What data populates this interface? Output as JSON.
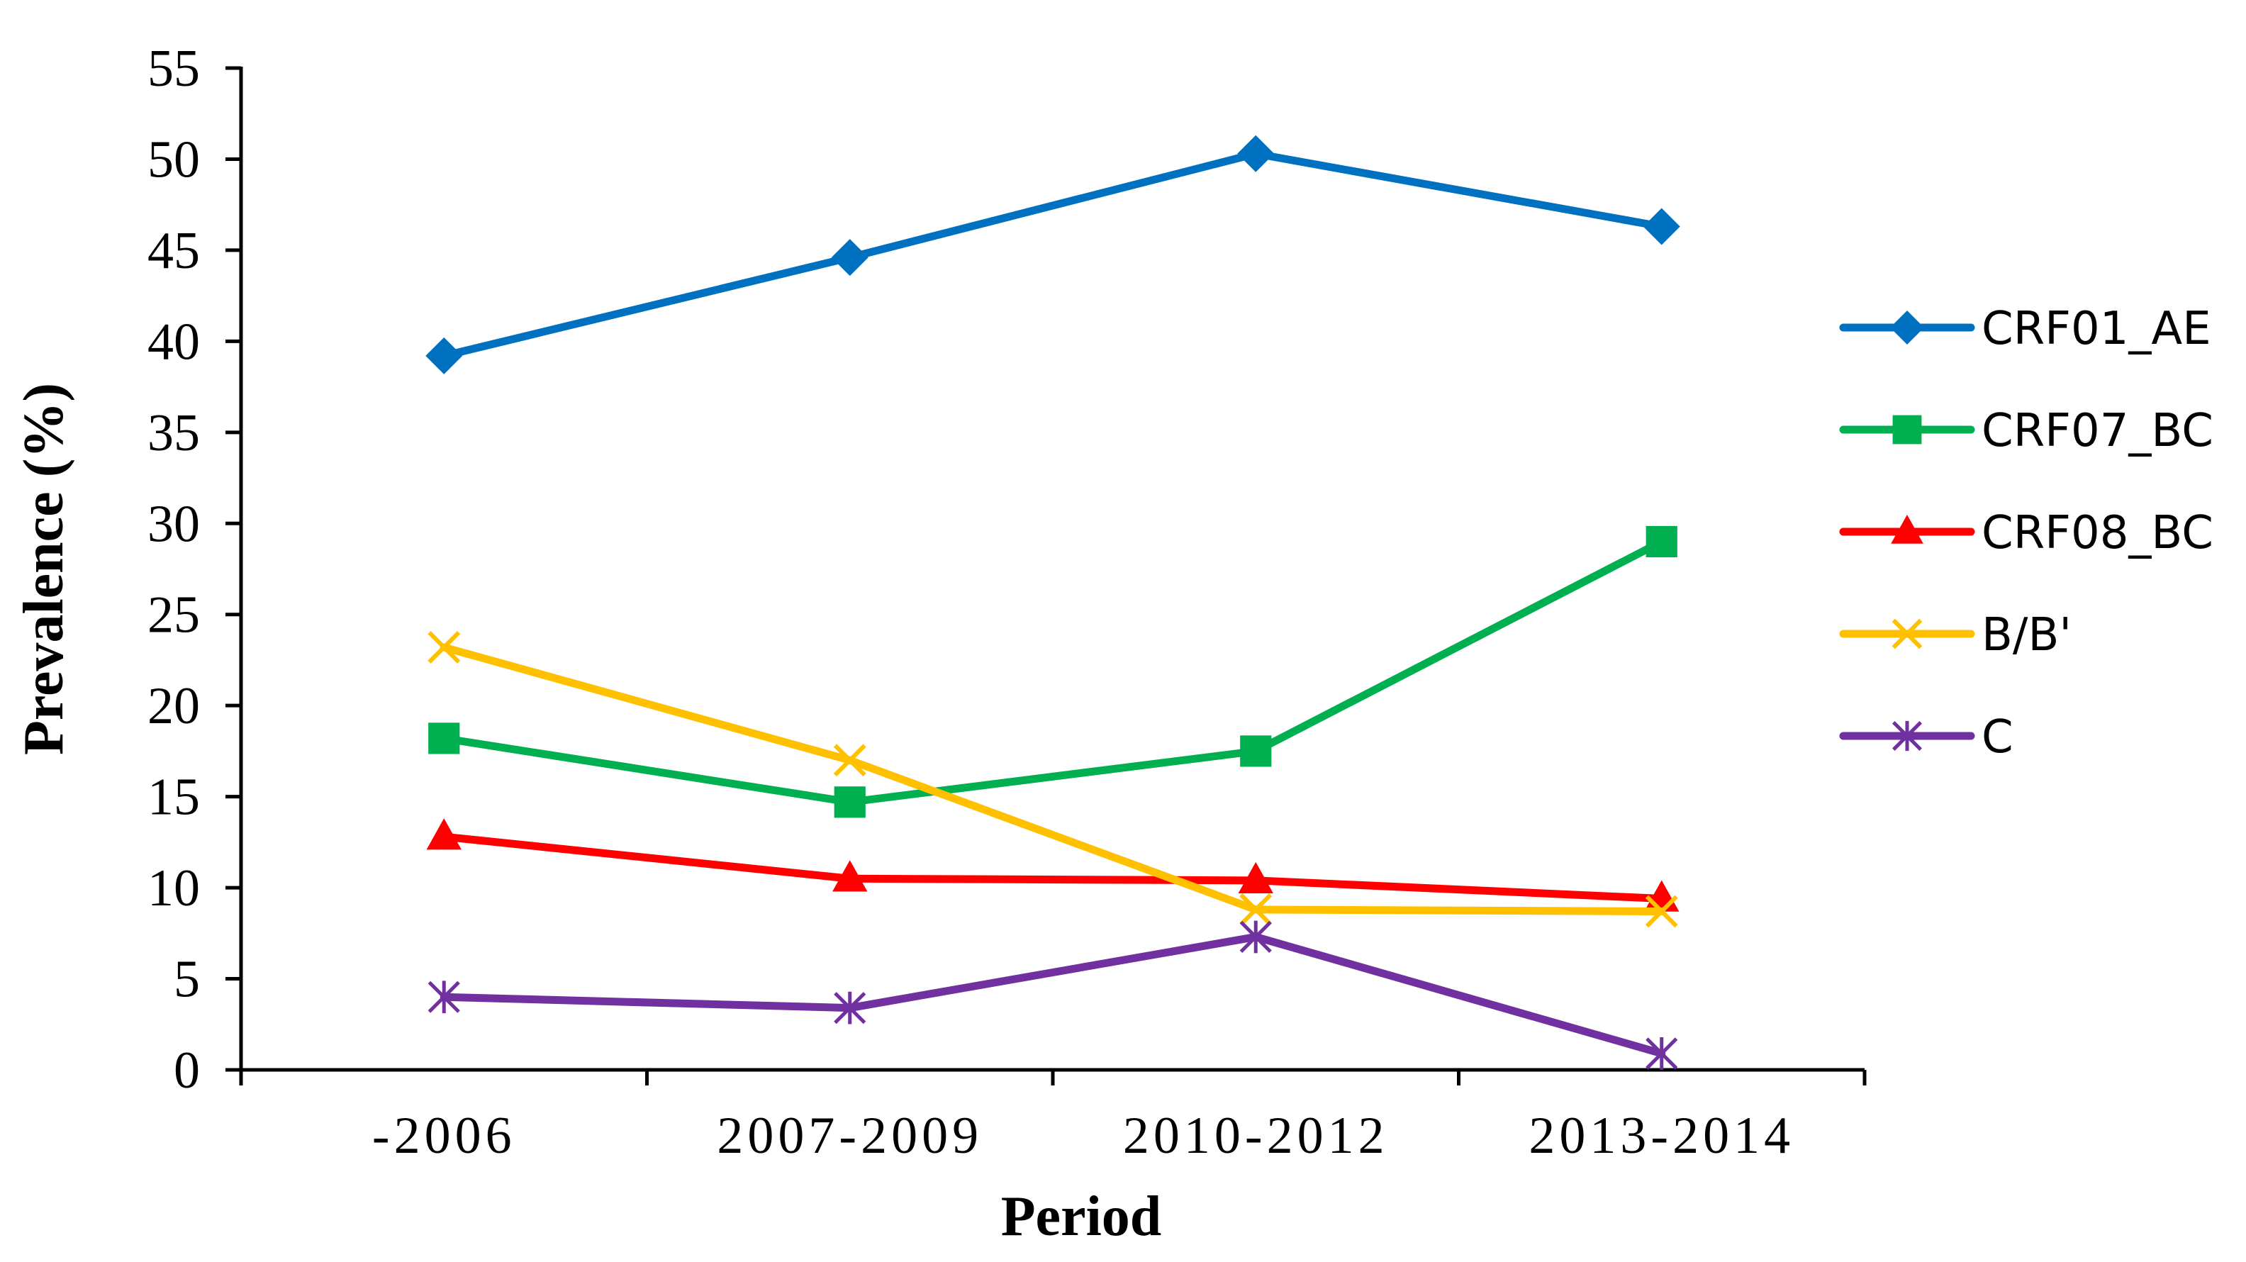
{
  "chart_data": {
    "type": "line",
    "title": "",
    "xlabel": "Period",
    "ylabel": "Prevalence (%)",
    "categories": [
      "-2006",
      "2007-2009",
      "2010-2012",
      "2013-2014"
    ],
    "ylim": [
      0,
      55
    ],
    "yticks": [
      0,
      5,
      10,
      15,
      20,
      25,
      30,
      35,
      40,
      45,
      50,
      55
    ],
    "grid": false,
    "legend_position": "right",
    "series": [
      {
        "name": "CRF01_AE",
        "color": "#0070C0",
        "marker": "diamond",
        "values": [
          39.2,
          44.6,
          50.3,
          46.3
        ]
      },
      {
        "name": "CRF07_BC",
        "color": "#00B050",
        "marker": "square",
        "values": [
          18.2,
          14.7,
          17.5,
          29.0
        ]
      },
      {
        "name": "CRF08_BC",
        "color": "#FF0000",
        "marker": "triangle",
        "values": [
          12.8,
          10.5,
          10.4,
          9.4
        ]
      },
      {
        "name": "B/B'",
        "color": "#FFC000",
        "marker": "x",
        "values": [
          23.2,
          17.0,
          8.8,
          8.7
        ]
      },
      {
        "name": "C",
        "color": "#7030A0",
        "marker": "star",
        "values": [
          4.0,
          3.4,
          7.3,
          0.9
        ]
      }
    ]
  }
}
